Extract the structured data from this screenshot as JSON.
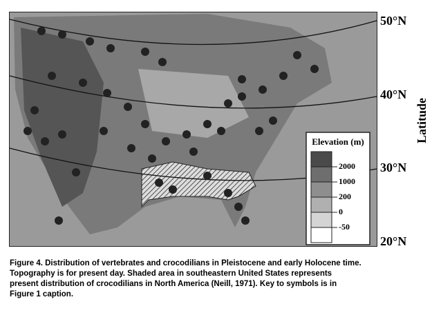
{
  "map": {
    "latitude_labels": [
      "50°N",
      "40°N",
      "30°N",
      "20°N"
    ],
    "axis_label": "Latitude",
    "legend": {
      "title": "Elevation (m)",
      "items": [
        "2000",
        "1000",
        "200",
        "0",
        "-50"
      ]
    }
  },
  "caption": {
    "lines": [
      "Figure 4. Distribution of vertebrates and crocodilians in Pleistocene and early Holocene time.",
      "Topography is for present day. Shaded area in southeastern United States represents",
      "present distribution of crocodilians in North America (Neill, 1971). Key to symbols is in",
      "Figure 1 caption."
    ]
  }
}
